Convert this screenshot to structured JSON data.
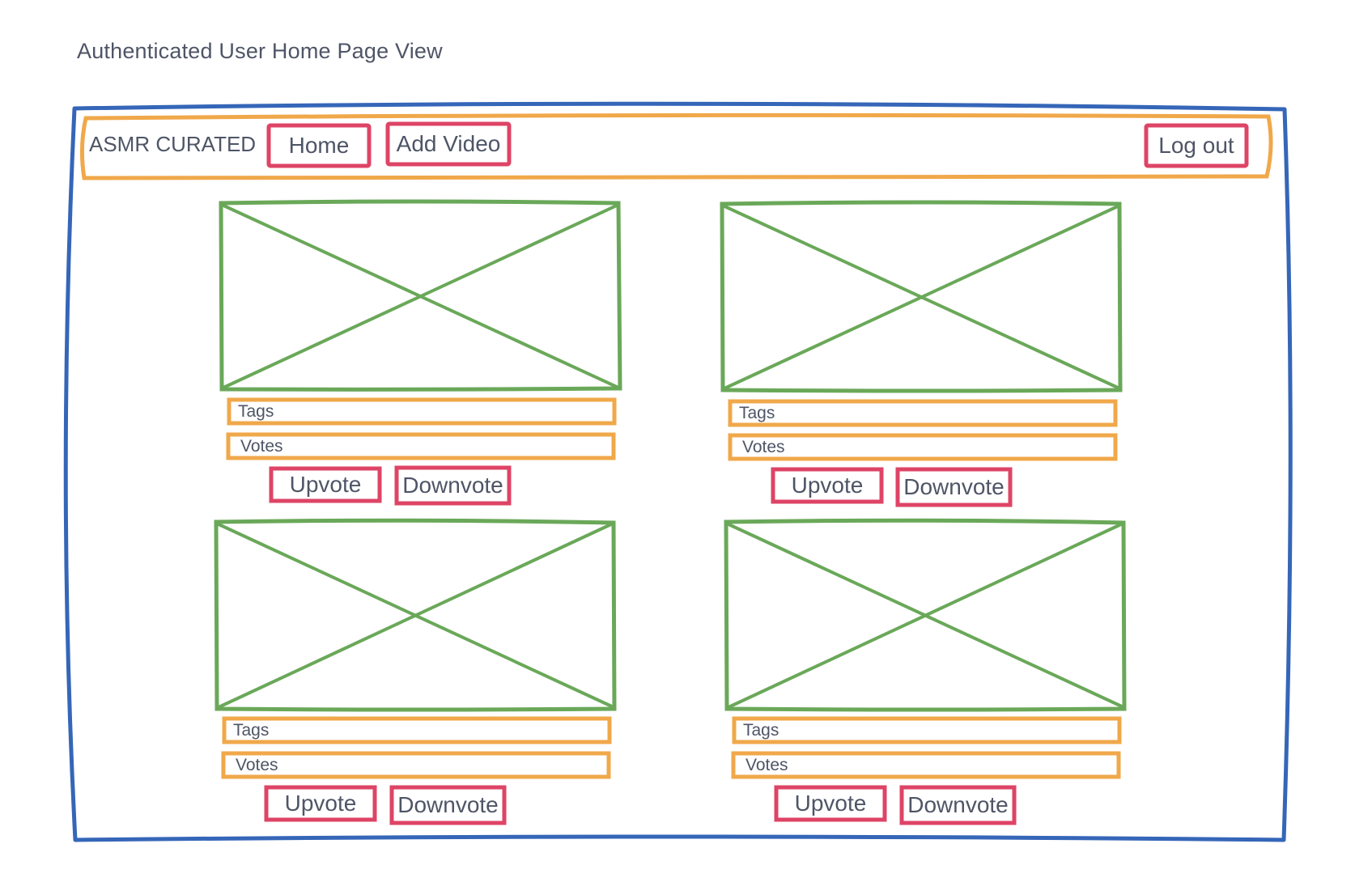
{
  "page_title": "Authenticated User Home Page View",
  "navbar": {
    "brand": "ASMR CURATED",
    "home_label": "Home",
    "add_video_label": "Add Video",
    "logout_label": "Log out"
  },
  "cards": [
    {
      "tags_label": "Tags",
      "votes_label": "Votes",
      "upvote_label": "Upvote",
      "downvote_label": "Downvote"
    },
    {
      "tags_label": "Tags",
      "votes_label": "Votes",
      "upvote_label": "Upvote",
      "downvote_label": "Downvote"
    },
    {
      "tags_label": "Tags",
      "votes_label": "Votes",
      "upvote_label": "Upvote",
      "downvote_label": "Downvote"
    },
    {
      "tags_label": "Tags",
      "votes_label": "Votes",
      "upvote_label": "Upvote",
      "downvote_label": "Downvote"
    }
  ],
  "colors": {
    "browser_frame": "#3566b8",
    "container": "#f0a84a",
    "button": "#de4466",
    "image_placeholder": "#6aa859",
    "text": "#4e5566"
  }
}
